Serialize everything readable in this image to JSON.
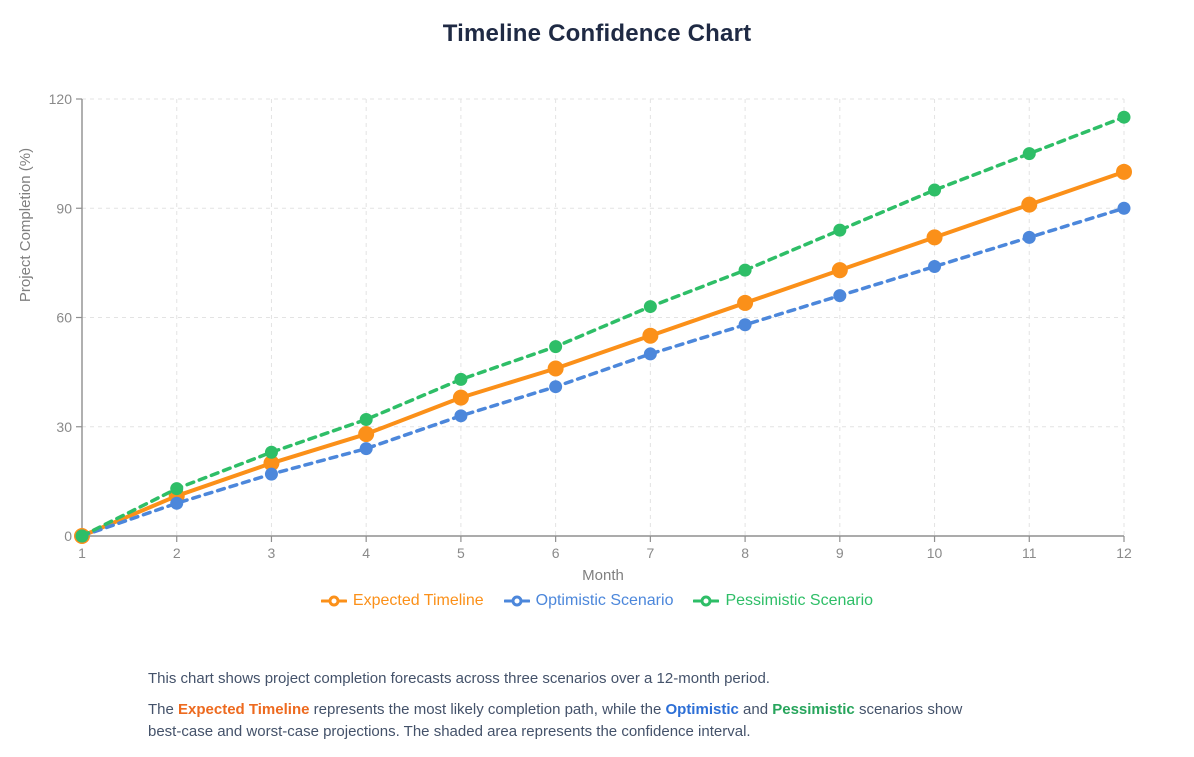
{
  "page": {
    "title": "Timeline Confidence Chart"
  },
  "chart_data": {
    "type": "line",
    "x": [
      1,
      2,
      3,
      4,
      5,
      6,
      7,
      8,
      9,
      10,
      11,
      12
    ],
    "series": [
      {
        "name": "Expected Timeline",
        "color": "#fb9019",
        "dashed": false,
        "marker_radius": 8,
        "values": [
          0,
          11,
          20,
          28,
          38,
          46,
          55,
          64,
          73,
          82,
          91,
          100
        ]
      },
      {
        "name": "Optimistic Scenario",
        "color": "#4c87db",
        "dashed": true,
        "marker_radius": 6.5,
        "values": [
          0,
          9,
          17,
          24,
          33,
          41,
          50,
          58,
          66,
          74,
          82,
          90
        ]
      },
      {
        "name": "Pessimistic Scenario",
        "color": "#2ebe67",
        "dashed": true,
        "marker_radius": 6.5,
        "values": [
          0,
          13,
          23,
          32,
          43,
          52,
          63,
          73,
          84,
          95,
          105,
          115
        ]
      }
    ],
    "xlabel": "Month",
    "ylabel": "Project Completion (%)",
    "xlim": [
      1,
      12
    ],
    "ylim": [
      0,
      120
    ],
    "yticks": [
      0,
      30,
      60,
      90,
      120
    ],
    "xticks": [
      1,
      2,
      3,
      4,
      5,
      6,
      7,
      8,
      9,
      10,
      11,
      12
    ],
    "grid": "dashed horizontal and vertical",
    "legend_position": "bottom"
  },
  "description": {
    "line1": "This chart shows project completion forecasts across three scenarios over a 12-month period.",
    "line2_segments": [
      {
        "text": "The "
      },
      {
        "text": "Expected Timeline",
        "color": "#ed6a1f"
      },
      {
        "text": " represents the most likely completion path, while the "
      },
      {
        "text": "Optimistic",
        "color": "#2d6fd6"
      },
      {
        "text": " and "
      },
      {
        "text": "Pessimistic",
        "color": "#27a55c"
      },
      {
        "text": " scenarios show best-case and worst-case projections. The shaded area represents the confidence interval."
      }
    ]
  },
  "colors": {
    "title": "#1f2a44",
    "axis_line": "#8f8f8f",
    "tick_label": "#8a8a8a",
    "axis_name": "#7f7f7f",
    "gridline": "#e3e3e3",
    "body_text": "#44526a",
    "background": "#ffffff"
  }
}
